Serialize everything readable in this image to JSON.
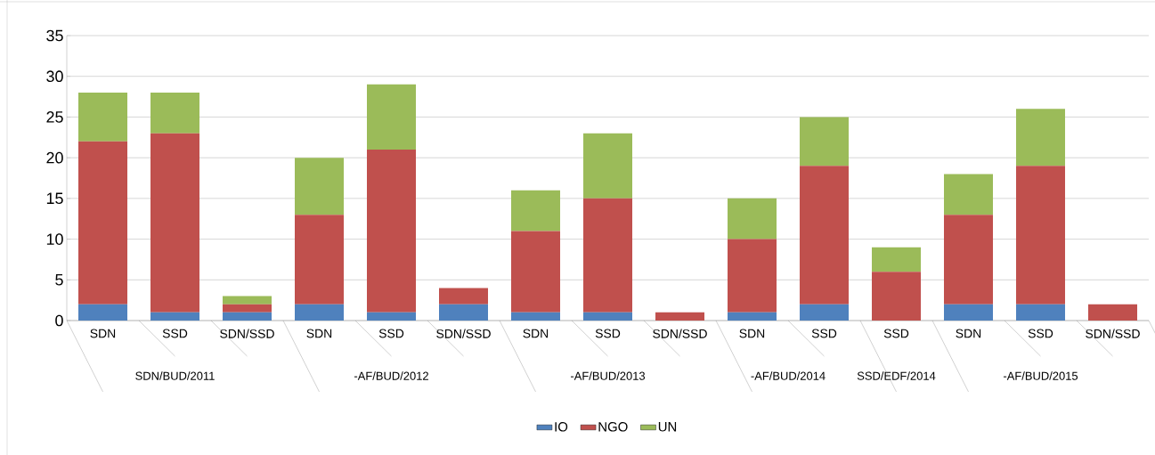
{
  "chart_data": {
    "type": "bar",
    "stacked": true,
    "categories": [
      "SDN",
      "SSD",
      "SDN/SSD",
      "SDN",
      "SSD",
      "SDN/SSD",
      "SDN",
      "SSD",
      "SDN/SSD",
      "SDN",
      "SSD",
      "SSD",
      "SDN",
      "SSD",
      "SDN/SSD"
    ],
    "annotations": [
      "SDN/BUD/2011",
      "-AF/BUD/2012",
      "-AF/BUD/2013",
      "-AF/BUD/2014",
      "SSD/EDF/2014",
      "-AF/BUD/2015"
    ],
    "series": [
      {
        "name": "IO",
        "color": "#4f81bd",
        "values": [
          2,
          1,
          1,
          2,
          1,
          2,
          1,
          1,
          0,
          1,
          2,
          0,
          2,
          2,
          0
        ]
      },
      {
        "name": "NGO",
        "color": "#c0504d",
        "values": [
          20,
          22,
          1,
          11,
          20,
          2,
          10,
          14,
          1,
          9,
          17,
          6,
          11,
          17,
          2
        ]
      },
      {
        "name": "UN",
        "color": "#9bbb59",
        "values": [
          6,
          5,
          1,
          7,
          8,
          0,
          5,
          8,
          0,
          5,
          6,
          3,
          5,
          7,
          0
        ]
      }
    ],
    "ylim": [
      0,
      35
    ],
    "yticks": [
      0,
      5,
      10,
      15,
      20,
      25,
      30,
      35
    ],
    "grid": "y",
    "legend": "bottom"
  }
}
